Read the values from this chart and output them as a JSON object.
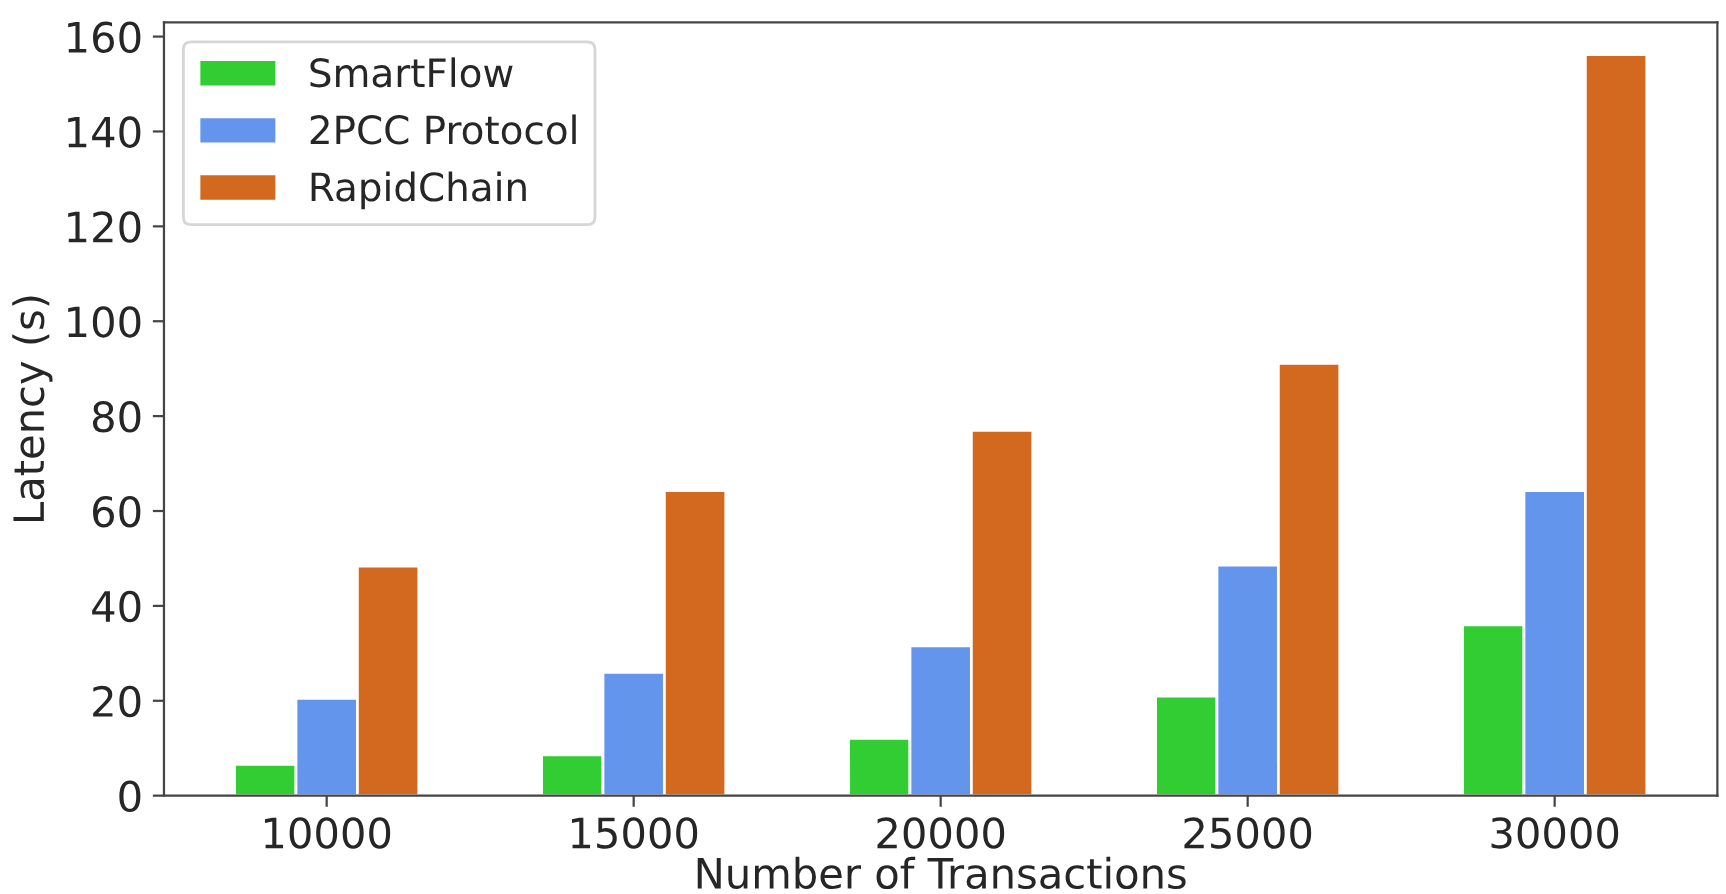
{
  "chart_data": {
    "type": "bar",
    "xlabel": "Number of Transactions",
    "ylabel": "Latency (s)",
    "categories": [
      "10000",
      "15000",
      "20000",
      "25000",
      "30000"
    ],
    "series": [
      {
        "name": "SmartFlow",
        "color": "#32cd32",
        "values": [
          6.6,
          8.6,
          12.1,
          21.0,
          36.0
        ]
      },
      {
        "name": "2PCC Protocol",
        "color": "#6495ed",
        "values": [
          20.5,
          26.0,
          31.6,
          48.6,
          64.3
        ]
      },
      {
        "name": "RapidChain",
        "color": "#d2691e",
        "values": [
          48.4,
          64.3,
          77.0,
          91.1,
          156.2
        ]
      }
    ],
    "ylim": [
      0,
      163
    ],
    "yticks": [
      0,
      20,
      40,
      60,
      80,
      100,
      120,
      140,
      160
    ],
    "legend": "top left",
    "grid": false
  }
}
